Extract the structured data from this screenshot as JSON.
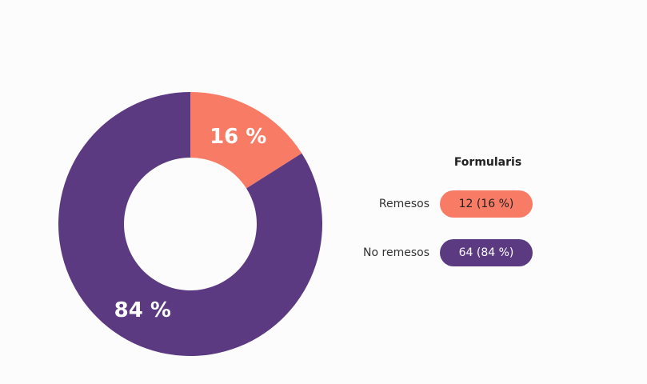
{
  "chart_data": {
    "type": "pie",
    "donut": true,
    "categories": [
      "Remesos",
      "No remesos"
    ],
    "values": [
      16,
      84
    ],
    "value_labels": [
      "16 %",
      "84 %"
    ],
    "legend_title": "Formularis",
    "legend_labels": [
      "12 (16 %)",
      "64 (84 %)"
    ],
    "colors": [
      "#f77b65",
      "#5b3a82"
    ]
  }
}
